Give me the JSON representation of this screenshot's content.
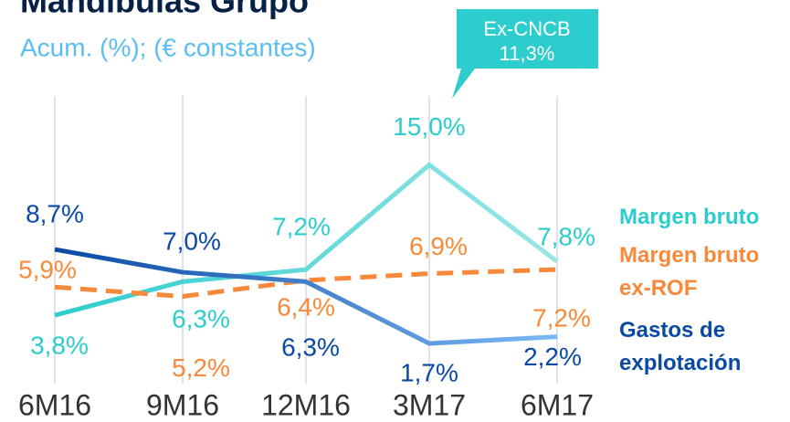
{
  "chart_data": {
    "type": "line",
    "title": "Mandíbulas Grupo",
    "subtitle": "Acum. (%); (€ constantes)",
    "annotation": [
      "Ex-CNCB",
      "11,3%"
    ],
    "categories": [
      "6M16",
      "9M16",
      "12M16",
      "3M17",
      "6M17"
    ],
    "ylim": [
      0,
      17
    ],
    "grid": true,
    "series": [
      {
        "name": "Margen bruto",
        "color": "#2dcccd",
        "values": [
          3.8,
          6.3,
          7.2,
          15.0,
          7.8
        ],
        "value_labels": [
          "3,8%",
          "6,3%",
          "7,2%",
          "15,0%",
          "7,8%"
        ]
      },
      {
        "name": "Margen bruto ex-ROF",
        "color": "#f7893b",
        "values": [
          5.9,
          5.2,
          6.4,
          6.9,
          7.2
        ],
        "value_labels": [
          "5,9%",
          "5,2%",
          "6,4%",
          "6,9%",
          "7,2%"
        ]
      },
      {
        "name": "Gastos de explotación",
        "color": "#1464c0",
        "values": [
          8.7,
          7.0,
          6.3,
          1.7,
          2.2
        ],
        "value_labels": [
          "8,7%",
          "7,0%",
          "6,3%",
          "1,7%",
          "2,2%"
        ]
      }
    ]
  }
}
